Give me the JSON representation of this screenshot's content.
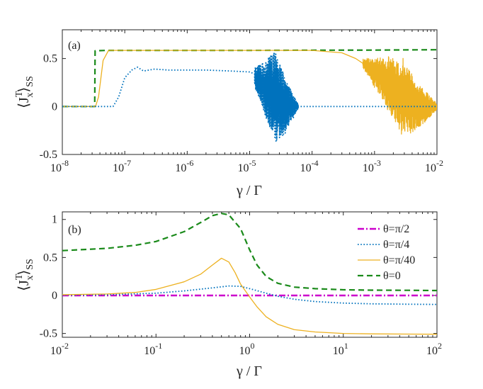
{
  "chart_data": [
    {
      "panel": "(a)",
      "type": "line",
      "xscale": "log",
      "xlim": [
        1e-08,
        0.01
      ],
      "ylim": [
        -0.5,
        0.8
      ],
      "xticks": [
        1e-08,
        1e-07,
        1e-06,
        1e-05,
        0.0001,
        0.001,
        0.01
      ],
      "xtick_labels": [
        {
          "base": "10",
          "exp": "-8"
        },
        {
          "base": "10",
          "exp": "-7"
        },
        {
          "base": "10",
          "exp": "-6"
        },
        {
          "base": "10",
          "exp": "-5"
        },
        {
          "base": "10",
          "exp": "-4"
        },
        {
          "base": "10",
          "exp": "-3"
        },
        {
          "base": "10",
          "exp": "-2"
        }
      ],
      "yticks": [
        -0.5,
        0,
        0.5
      ],
      "ytick_labels": [
        "-0.5",
        "0",
        "0.5"
      ],
      "xlabel": "γ / Γ",
      "ylabel": {
        "open": "⟨",
        "symbol": "J",
        "sup": "T",
        "sub": "x",
        "close": "⟩",
        "subscript": "SS"
      },
      "series": [
        {
          "name": "θ=0",
          "color": "#1a8a1a",
          "style": "dashed",
          "width": 2.2,
          "x": [
            1e-08,
            3.3e-08,
            3.35e-08,
            5e-08,
            1e-06,
            1e-05,
            0.0001,
            0.001,
            0.01
          ],
          "y": [
            0,
            0,
            0.58,
            0.585,
            0.585,
            0.585,
            0.587,
            0.588,
            0.592
          ]
        },
        {
          "name": "θ=π/40",
          "color": "#edb120",
          "style": "solid",
          "width": 1.3,
          "x": [
            1e-08,
            3.4e-08,
            3.8e-08,
            4.5e-08,
            5.5e-08,
            1e-06,
            1e-05,
            0.0001,
            0.0003,
            0.0005,
            0.00065
          ],
          "y": [
            0,
            0,
            0.1,
            0.48,
            0.585,
            0.585,
            0.585,
            0.585,
            0.56,
            0.5,
            0.45
          ],
          "noise": {
            "from": 0.00065,
            "to": 0.01,
            "center_start": 0.45,
            "center_end": 0.0,
            "amp_start": 0.05,
            "amp_peak": 0.42,
            "peak_at": 0.0028,
            "amp_end": 0.03
          }
        },
        {
          "name": "θ=π/4",
          "color": "#0072bd",
          "style": "dotted",
          "width": 1.8,
          "x": [
            1e-08,
            6.5e-08,
            8e-08,
            1e-07,
            1.3e-07,
            1.6e-07,
            2e-07,
            3e-07,
            5e-07,
            1e-06,
            2e-06,
            5e-06,
            1e-05,
            1.2e-05
          ],
          "y": [
            0,
            0,
            0.1,
            0.3,
            0.38,
            0.41,
            0.37,
            0.39,
            0.38,
            0.38,
            0.38,
            0.37,
            0.36,
            0.34
          ],
          "noise": {
            "from": 1.2e-05,
            "to": 6e-05,
            "center_start": 0.3,
            "center_end": 0.0,
            "amp_start": 0.1,
            "amp_peak": 0.48,
            "peak_at": 2.6e-05,
            "amp_end": 0.02
          },
          "tail": {
            "x": [
              6e-05,
              0.0001,
              0.001,
              0.01
            ],
            "y": [
              0,
              0,
              0,
              0
            ]
          }
        }
      ]
    },
    {
      "panel": "(b)",
      "type": "line",
      "xscale": "log",
      "xlim": [
        0.01,
        100
      ],
      "ylim": [
        -0.55,
        1.1
      ],
      "xticks": [
        0.01,
        0.1,
        1,
        10,
        100
      ],
      "xtick_labels": [
        {
          "base": "10",
          "exp": "-2"
        },
        {
          "base": "10",
          "exp": "-1"
        },
        {
          "base": "10",
          "exp": "0"
        },
        {
          "base": "10",
          "exp": "1"
        },
        {
          "base": "10",
          "exp": "2"
        }
      ],
      "yticks": [
        -0.5,
        0,
        0.5,
        1
      ],
      "ytick_labels": [
        "-0.5",
        "0",
        "0.5",
        "1"
      ],
      "xlabel": "γ / Γ",
      "ylabel": {
        "open": "⟨",
        "symbol": "J",
        "sup": "T",
        "sub": "x",
        "close": "⟩",
        "subscript": "SS"
      },
      "legend_position": "top-right",
      "series": [
        {
          "name": "θ=π/2",
          "color": "#cc00cc",
          "style": "dashdot",
          "width": 2.4,
          "x": [
            0.01,
            0.1,
            1,
            10,
            100
          ],
          "y": [
            0,
            0,
            0,
            0,
            0
          ]
        },
        {
          "name": "θ=π/4",
          "color": "#0072bd",
          "style": "dotted",
          "width": 1.8,
          "x": [
            0.01,
            0.03,
            0.1,
            0.2,
            0.4,
            0.6,
            0.8,
            1.0,
            1.5,
            2,
            3,
            5,
            10,
            20,
            50,
            100
          ],
          "y": [
            0.005,
            0.01,
            0.03,
            0.06,
            0.1,
            0.125,
            0.12,
            0.09,
            0.03,
            -0.01,
            -0.05,
            -0.08,
            -0.1,
            -0.11,
            -0.115,
            -0.118
          ]
        },
        {
          "name": "θ=π/40",
          "color": "#edb120",
          "style": "solid",
          "width": 1.3,
          "x": [
            0.01,
            0.03,
            0.06,
            0.1,
            0.2,
            0.3,
            0.4,
            0.5,
            0.6,
            0.7,
            0.8,
            1.0,
            1.2,
            1.5,
            2,
            3,
            5,
            10,
            20,
            50,
            100
          ],
          "y": [
            0.01,
            0.02,
            0.04,
            0.08,
            0.18,
            0.28,
            0.4,
            0.49,
            0.44,
            0.3,
            0.15,
            -0.02,
            -0.15,
            -0.28,
            -0.38,
            -0.45,
            -0.48,
            -0.5,
            -0.505,
            -0.508,
            -0.51
          ]
        },
        {
          "name": "θ=0",
          "color": "#1a8a1a",
          "style": "dashed",
          "width": 2.2,
          "x": [
            0.01,
            0.03,
            0.06,
            0.1,
            0.2,
            0.3,
            0.4,
            0.5,
            0.6,
            0.8,
            1.0,
            1.2,
            1.5,
            2,
            3,
            5,
            10,
            20,
            50,
            100
          ],
          "y": [
            0.59,
            0.62,
            0.66,
            0.71,
            0.84,
            0.96,
            1.05,
            1.08,
            1.06,
            0.88,
            0.6,
            0.4,
            0.25,
            0.16,
            0.11,
            0.09,
            0.075,
            0.07,
            0.068,
            0.065
          ]
        }
      ]
    }
  ]
}
